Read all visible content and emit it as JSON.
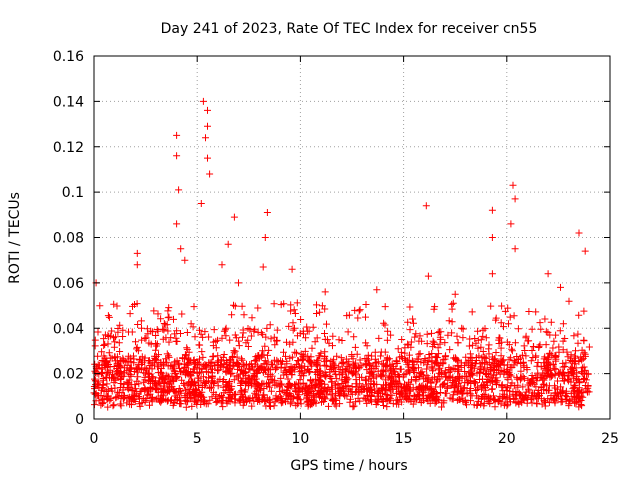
{
  "chart_data": {
    "type": "scatter",
    "title": "Day 241 of 2023, Rate Of TEC Index for receiver cn55",
    "xlabel": "GPS time / hours",
    "ylabel": "ROTI / TECUs",
    "xlim": [
      0,
      25
    ],
    "ylim": [
      0,
      0.16
    ],
    "xticks": [
      0,
      5,
      10,
      15,
      20,
      25
    ],
    "xtick_labels": [
      "0",
      "5",
      "10",
      "15",
      "20",
      "25"
    ],
    "yticks": [
      0,
      0.02,
      0.04,
      0.06,
      0.08,
      0.1,
      0.12,
      0.14,
      0.16
    ],
    "ytick_labels": [
      "0",
      "0.02",
      "0.04",
      "0.06",
      "0.08",
      "0.1",
      "0.12",
      "0.14",
      "0.16"
    ],
    "grid": true,
    "marker": "+",
    "series_color": "#ff0000",
    "data_range_x": [
      0,
      24
    ],
    "dense_band": {
      "min": 0.005,
      "max": 0.04,
      "typical": 0.02
    },
    "notable_points": [
      {
        "x": 5.3,
        "y": 0.14
      },
      {
        "x": 5.5,
        "y": 0.136
      },
      {
        "x": 5.5,
        "y": 0.129
      },
      {
        "x": 4.0,
        "y": 0.125
      },
      {
        "x": 5.4,
        "y": 0.124
      },
      {
        "x": 4.0,
        "y": 0.116
      },
      {
        "x": 5.5,
        "y": 0.115
      },
      {
        "x": 5.6,
        "y": 0.108
      },
      {
        "x": 4.1,
        "y": 0.101
      },
      {
        "x": 20.3,
        "y": 0.103
      },
      {
        "x": 20.4,
        "y": 0.097
      },
      {
        "x": 5.2,
        "y": 0.095
      },
      {
        "x": 16.1,
        "y": 0.094
      },
      {
        "x": 19.3,
        "y": 0.092
      },
      {
        "x": 8.4,
        "y": 0.091
      },
      {
        "x": 6.8,
        "y": 0.089
      },
      {
        "x": 4.0,
        "y": 0.086
      },
      {
        "x": 20.2,
        "y": 0.086
      },
      {
        "x": 23.5,
        "y": 0.082
      },
      {
        "x": 8.3,
        "y": 0.08
      },
      {
        "x": 19.3,
        "y": 0.08
      },
      {
        "x": 6.5,
        "y": 0.077
      },
      {
        "x": 4.2,
        "y": 0.075
      },
      {
        "x": 20.4,
        "y": 0.075
      },
      {
        "x": 2.1,
        "y": 0.073
      },
      {
        "x": 23.8,
        "y": 0.074
      },
      {
        "x": 2.1,
        "y": 0.068
      },
      {
        "x": 4.4,
        "y": 0.07
      },
      {
        "x": 6.2,
        "y": 0.068
      },
      {
        "x": 8.2,
        "y": 0.067
      },
      {
        "x": 9.6,
        "y": 0.066
      },
      {
        "x": 16.2,
        "y": 0.063
      },
      {
        "x": 19.3,
        "y": 0.064
      },
      {
        "x": 22.0,
        "y": 0.064
      },
      {
        "x": 0.1,
        "y": 0.06
      },
      {
        "x": 7.0,
        "y": 0.06
      },
      {
        "x": 11.2,
        "y": 0.056
      },
      {
        "x": 13.7,
        "y": 0.057
      },
      {
        "x": 17.5,
        "y": 0.055
      },
      {
        "x": 22.6,
        "y": 0.058
      }
    ]
  }
}
